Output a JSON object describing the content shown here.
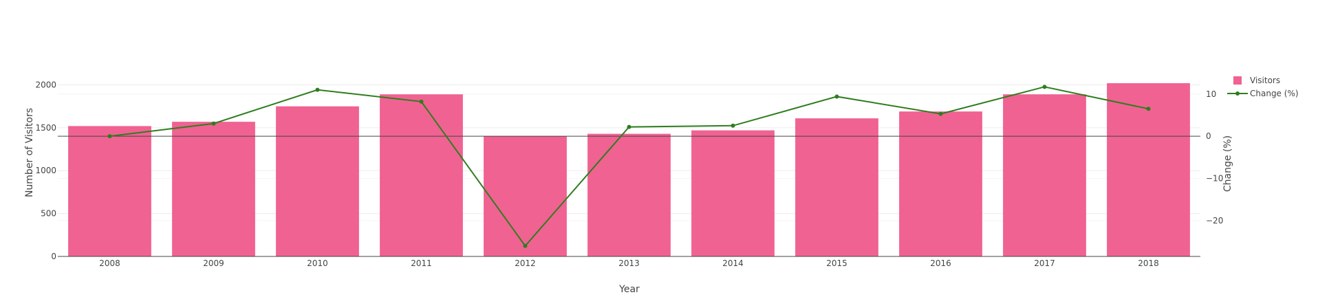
{
  "chart_data": {
    "type": "bar",
    "title": "",
    "xlabel": "Year",
    "ylabel": "Number of Visitors",
    "y2label": "Change (%)",
    "categories": [
      "2008",
      "2009",
      "2010",
      "2011",
      "2012",
      "2013",
      "2014",
      "2015",
      "2016",
      "2017",
      "2018"
    ],
    "series": [
      {
        "name": "Visitors",
        "type": "bar",
        "axis": "y",
        "color": "#f06292",
        "values": [
          1520,
          1570,
          1750,
          1890,
          1400,
          1430,
          1470,
          1610,
          1690,
          1890,
          2020
        ]
      },
      {
        "name": "Change (%)",
        "type": "line",
        "axis": "y2",
        "color": "#2e7d1e",
        "values": [
          0,
          3.0,
          11.0,
          8.2,
          -26.0,
          2.2,
          2.5,
          9.4,
          5.3,
          11.7,
          6.5
        ]
      }
    ],
    "ylim": [
      0,
      2100
    ],
    "yticks": [
      0,
      500,
      1000,
      1500,
      2000
    ],
    "y2lim": [
      -28.5,
      14.2
    ],
    "y2ticks": [
      -20,
      -10,
      0,
      10
    ],
    "grid": true,
    "legend_position": "top-right"
  }
}
